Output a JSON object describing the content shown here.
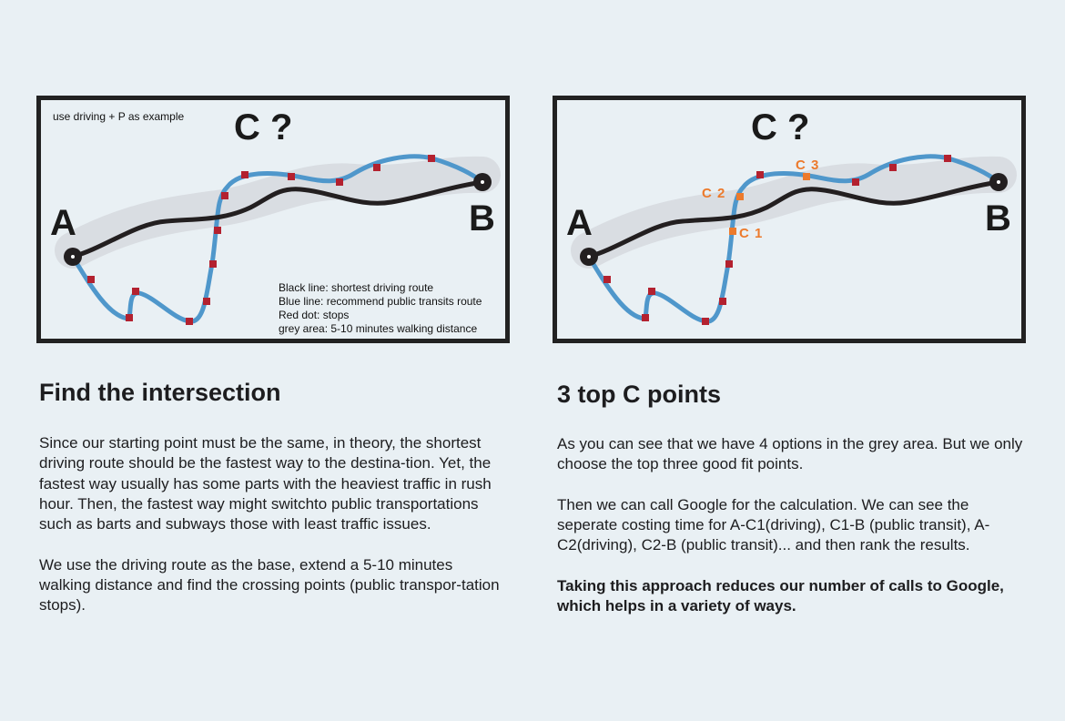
{
  "left_panel": {
    "note": "use driving + P as example",
    "c_label": "C ?",
    "point_a": "A",
    "point_b": "B",
    "legend": [
      "Black line: shortest driving route",
      "Blue line: recommend public transits route",
      "Red dot: stops",
      "grey area: 5-10 minutes walking distance"
    ]
  },
  "right_panel": {
    "c_label": "C ?",
    "point_a": "A",
    "point_b": "B",
    "c_points": [
      "C 1",
      "C 2",
      "C 3"
    ]
  },
  "colors": {
    "background": "#e9f0f4",
    "driving_route": "#231f20",
    "transit_route": "#4f97cb",
    "stops": "#b3212f",
    "walking_area": "#d9dde2",
    "c_points": "#ec7a2c"
  },
  "left_section": {
    "heading": "Find the intersection",
    "paragraphs": [
      "Since our starting point must be the same, in theory, the shortest driving route should be the fastest way to the destina-tion. Yet, the fastest way usually has some parts with the heaviest traffic in rush hour. Then, the fastest way might switchto public transportations such as barts and subways those with least traffic issues.",
      "We use the driving route as the base, extend a 5-10 minutes walking distance and find the crossing points (public transpor-tation stops)."
    ]
  },
  "right_section": {
    "heading": "3 top C points",
    "paragraphs": [
      "As you can see that we have 4 options in the grey area. But we only choose the top three good fit points.",
      "Then we can call Google for the calculation. We can see the seperate costing time for A-C1(driving), C1-B (public transit), A-C2(driving), C2-B (public transit)... and then rank the results."
    ],
    "bold_paragraph": "Taking this approach reduces our number of calls to Google, which helps in a variety of ways."
  }
}
